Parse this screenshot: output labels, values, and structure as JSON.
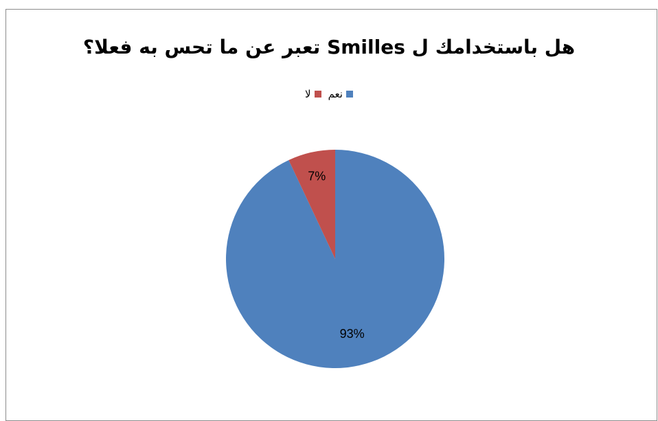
{
  "chart_data": {
    "type": "pie",
    "title": "هل باستخدامك ل Smilles تعبر عن ما تحس به فعلا؟",
    "categories": [
      "نعم",
      "لا"
    ],
    "values": [
      93,
      7
    ],
    "labels": [
      "93%",
      "7%"
    ],
    "colors": [
      "#4f81bd",
      "#c0504d"
    ],
    "legend_position": "top",
    "grid": false
  }
}
